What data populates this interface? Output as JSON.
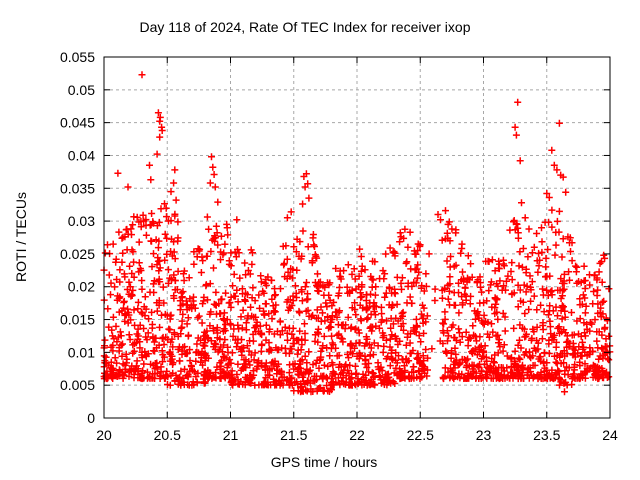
{
  "chart_data": {
    "type": "scatter",
    "title": "Day 118 of 2024, Rate Of TEC Index for receiver ixop",
    "xlabel": "GPS time / hours",
    "ylabel": "ROTI / TECUs",
    "xlim": [
      20,
      24
    ],
    "ylim": [
      0,
      0.055
    ],
    "xticks": [
      20,
      20.5,
      21,
      21.5,
      22,
      22.5,
      23,
      23.5,
      24
    ],
    "xtick_labels": [
      "20",
      "20.5",
      "21",
      "21.5",
      "22",
      "22.5",
      "23",
      "23.5",
      "24"
    ],
    "yticks": [
      0,
      0.005,
      0.01,
      0.015,
      0.02,
      0.025,
      0.03,
      0.035,
      0.04,
      0.045,
      0.05,
      0.055
    ],
    "ytick_labels": [
      "0",
      "0.005",
      "0.01",
      "0.015",
      "0.02",
      "0.025",
      "0.03",
      "0.035",
      "0.04",
      "0.045",
      "0.05",
      "0.055"
    ],
    "grid": {
      "show": true,
      "style": "dashed",
      "color": "#a8a8a8"
    },
    "legend": "none",
    "marker": {
      "symbol": "plus",
      "color": "#ff0000",
      "size": 7,
      "stroke_width": 1.5
    },
    "series_name": "ROTI",
    "data_representation": "dense ~2300-point cloud approximated by density_segments [x_start,x_end,count,y_min,y_max_envelope]; distinctive high points listed explicitly in outlier_points",
    "y_skew": 1.9,
    "seed": 118,
    "outlier_points": [
      [
        20.11,
        0.0373
      ],
      [
        20.19,
        0.0352
      ],
      [
        20.3,
        0.0523
      ],
      [
        20.36,
        0.0385
      ],
      [
        20.37,
        0.0363
      ],
      [
        20.42,
        0.0402
      ],
      [
        20.43,
        0.0465
      ],
      [
        20.44,
        0.0452
      ],
      [
        20.44,
        0.0428
      ],
      [
        20.445,
        0.0458
      ],
      [
        20.455,
        0.0443
      ],
      [
        20.46,
        0.0438
      ],
      [
        20.53,
        0.0345
      ],
      [
        20.55,
        0.0358
      ],
      [
        20.56,
        0.0378
      ],
      [
        20.57,
        0.0332
      ],
      [
        20.84,
        0.0358
      ],
      [
        20.85,
        0.0398
      ],
      [
        20.86,
        0.0382
      ],
      [
        20.87,
        0.0371
      ],
      [
        20.88,
        0.0352
      ],
      [
        20.9,
        0.0329
      ],
      [
        20.97,
        0.0295
      ],
      [
        21.05,
        0.0302
      ],
      [
        21.45,
        0.0305
      ],
      [
        21.48,
        0.0314
      ],
      [
        21.57,
        0.0326
      ],
      [
        21.58,
        0.0368
      ],
      [
        21.59,
        0.0352
      ],
      [
        21.6,
        0.0372
      ],
      [
        21.61,
        0.0357
      ],
      [
        21.62,
        0.0335
      ],
      [
        22.3,
        0.0251
      ],
      [
        22.42,
        0.0283
      ],
      [
        22.57,
        0.025
      ],
      [
        22.64,
        0.031
      ],
      [
        22.66,
        0.0302
      ],
      [
        22.7,
        0.0316
      ],
      [
        22.72,
        0.0295
      ],
      [
        22.75,
        0.0288
      ],
      [
        22.78,
        0.0282
      ],
      [
        22.83,
        0.0265
      ],
      [
        23.07,
        0.0241
      ],
      [
        23.12,
        0.0228
      ],
      [
        23.25,
        0.0443
      ],
      [
        23.26,
        0.0431
      ],
      [
        23.27,
        0.0481
      ],
      [
        23.29,
        0.0392
      ],
      [
        23.3,
        0.0328
      ],
      [
        23.33,
        0.0305
      ],
      [
        23.36,
        0.0288
      ],
      [
        23.5,
        0.0342
      ],
      [
        23.52,
        0.0336
      ],
      [
        23.54,
        0.0408
      ],
      [
        23.56,
        0.0385
      ],
      [
        23.58,
        0.0378
      ],
      [
        23.6,
        0.0449
      ],
      [
        23.61,
        0.037
      ],
      [
        23.63,
        0.0367
      ],
      [
        23.64,
        0.004
      ],
      [
        23.65,
        0.0344
      ],
      [
        23.68,
        0.0267
      ],
      [
        23.7,
        0.0267
      ],
      [
        23.95,
        0.0248
      ]
    ],
    "density_segments": [
      [
        20.0,
        20.1,
        62,
        0.006,
        0.027
      ],
      [
        20.1,
        20.2,
        62,
        0.006,
        0.029
      ],
      [
        20.2,
        20.3,
        62,
        0.006,
        0.031
      ],
      [
        20.3,
        20.4,
        62,
        0.006,
        0.032
      ],
      [
        20.4,
        20.5,
        64,
        0.006,
        0.033
      ],
      [
        20.5,
        20.6,
        64,
        0.005,
        0.032
      ],
      [
        20.6,
        20.7,
        58,
        0.005,
        0.024
      ],
      [
        20.7,
        20.8,
        58,
        0.005,
        0.026
      ],
      [
        20.8,
        20.9,
        64,
        0.006,
        0.031
      ],
      [
        20.9,
        21.0,
        62,
        0.006,
        0.029
      ],
      [
        21.0,
        21.1,
        58,
        0.005,
        0.027
      ],
      [
        21.1,
        21.2,
        58,
        0.005,
        0.026
      ],
      [
        21.2,
        21.3,
        55,
        0.005,
        0.022
      ],
      [
        21.3,
        21.4,
        55,
        0.005,
        0.022
      ],
      [
        21.4,
        21.5,
        58,
        0.005,
        0.028
      ],
      [
        21.5,
        21.6,
        62,
        0.004,
        0.029
      ],
      [
        21.6,
        21.7,
        62,
        0.004,
        0.028
      ],
      [
        21.7,
        21.8,
        55,
        0.004,
        0.021
      ],
      [
        21.8,
        21.9,
        55,
        0.005,
        0.023
      ],
      [
        21.9,
        22.0,
        58,
        0.005,
        0.024
      ],
      [
        22.0,
        22.1,
        62,
        0.005,
        0.026
      ],
      [
        22.1,
        22.2,
        58,
        0.005,
        0.024
      ],
      [
        22.2,
        22.3,
        58,
        0.005,
        0.026
      ],
      [
        22.3,
        22.4,
        58,
        0.006,
        0.029
      ],
      [
        22.4,
        22.5,
        58,
        0.006,
        0.027
      ],
      [
        22.5,
        22.56,
        30,
        0.006,
        0.024
      ],
      [
        22.56,
        22.67,
        4,
        0.008,
        0.02
      ],
      [
        22.67,
        22.8,
        70,
        0.006,
        0.03
      ],
      [
        22.8,
        22.9,
        56,
        0.006,
        0.028
      ],
      [
        22.9,
        23.0,
        52,
        0.006,
        0.023
      ],
      [
        23.0,
        23.1,
        52,
        0.006,
        0.024
      ],
      [
        23.1,
        23.2,
        52,
        0.006,
        0.026
      ],
      [
        23.2,
        23.3,
        56,
        0.006,
        0.031
      ],
      [
        23.3,
        23.4,
        52,
        0.006,
        0.027
      ],
      [
        23.4,
        23.5,
        56,
        0.006,
        0.03
      ],
      [
        23.5,
        23.6,
        62,
        0.006,
        0.032
      ],
      [
        23.6,
        23.7,
        58,
        0.005,
        0.03
      ],
      [
        23.7,
        23.8,
        55,
        0.006,
        0.024
      ],
      [
        23.8,
        23.9,
        55,
        0.006,
        0.022
      ],
      [
        23.9,
        24.0,
        58,
        0.006,
        0.025
      ]
    ]
  },
  "figure": {
    "background": "#ffffff",
    "text_color": "#000000",
    "border_color": "#000000"
  }
}
